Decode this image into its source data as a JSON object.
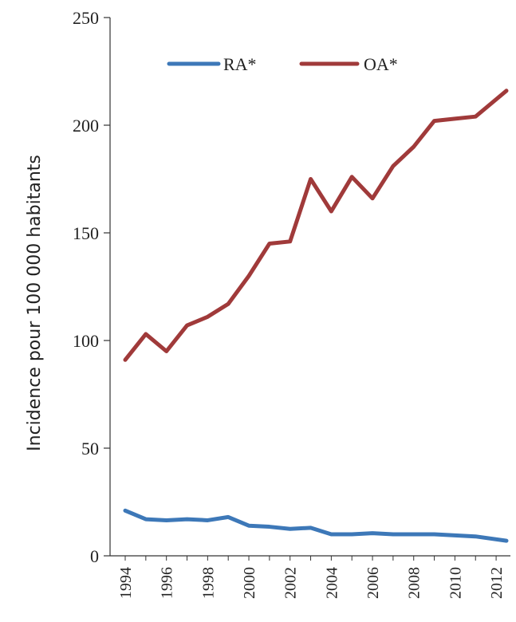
{
  "chart_data": {
    "type": "line",
    "title": "",
    "xlabel": "",
    "ylabel": "Incidence pour 100 000 habitants",
    "ylim": [
      0,
      250
    ],
    "yticks": [
      0,
      50,
      100,
      150,
      200,
      250
    ],
    "xlim": [
      1994,
      2012.5
    ],
    "xticks": [
      1994,
      1996,
      1998,
      2000,
      2002,
      2004,
      2006,
      2008,
      2010,
      2012
    ],
    "grid": false,
    "legend": "top",
    "x": [
      1994,
      1995,
      1996,
      1997,
      1998,
      1999,
      2000,
      2001,
      2002,
      2003,
      2004,
      2005,
      2006,
      2007,
      2008,
      2009,
      2010,
      2011,
      2012.5
    ],
    "series": [
      {
        "name": "RA*",
        "color": "#3d78b8",
        "values": [
          21,
          17,
          16.5,
          17,
          16.5,
          18,
          14,
          13.5,
          12.5,
          13,
          10,
          10,
          10.5,
          10,
          10,
          10,
          9.5,
          9,
          7
        ]
      },
      {
        "name": "OA*",
        "color": "#a03a3a",
        "values": [
          91,
          103,
          95,
          107,
          111,
          117,
          130,
          145,
          146,
          175,
          160,
          176,
          166,
          181,
          190,
          202,
          203,
          204,
          216
        ]
      }
    ]
  }
}
